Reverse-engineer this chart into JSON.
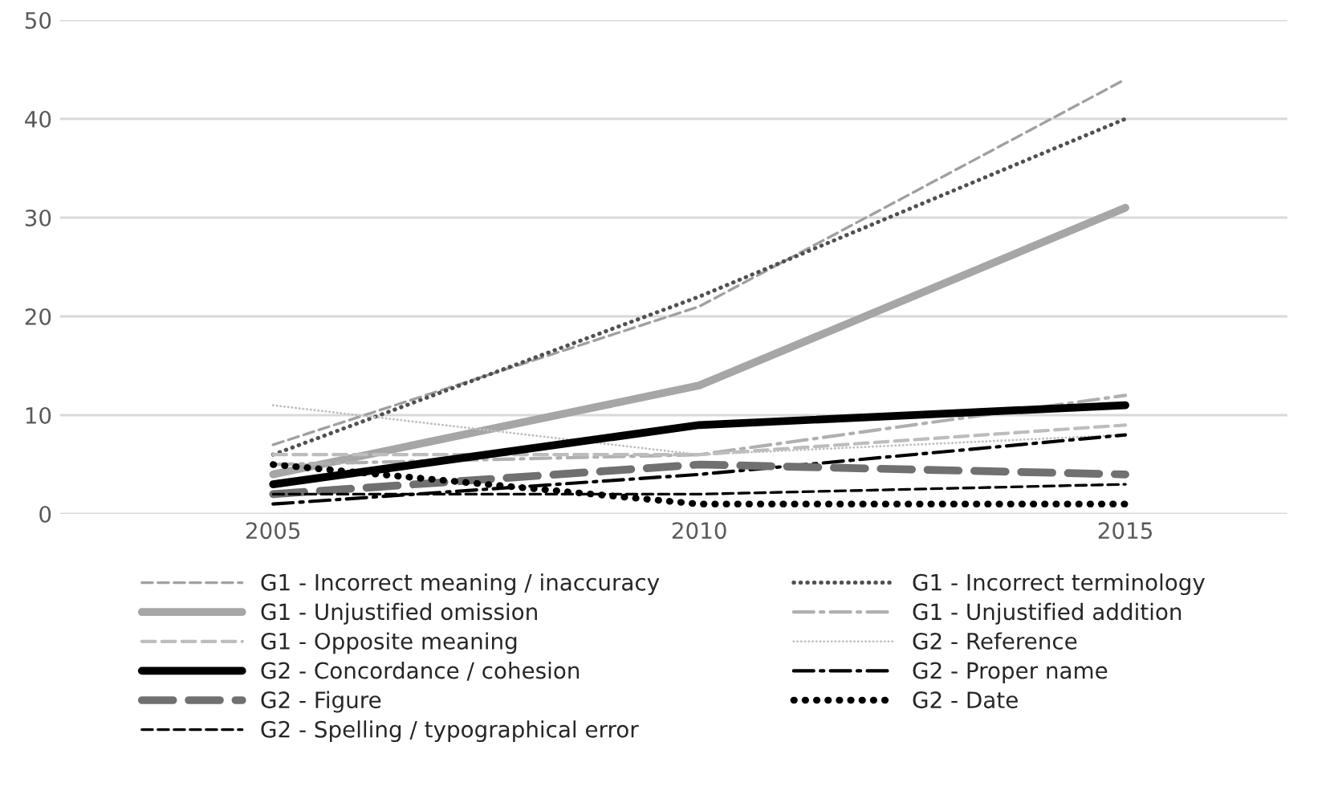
{
  "chart_data": {
    "type": "line",
    "categories": [
      "2005",
      "2010",
      "2015"
    ],
    "ylim": [
      0,
      50
    ],
    "yticks": [
      0,
      10,
      20,
      30,
      40,
      50
    ],
    "grid": "y",
    "legend": "bottom",
    "marker": "none",
    "series": [
      {
        "name": "G1 - Incorrect meaning / inaccuracy",
        "color": "#a0a0a0",
        "line_style": "dashed",
        "values": [
          7,
          21,
          44
        ]
      },
      {
        "name": "G1 - Incorrect terminology",
        "color": "#505050",
        "line_style": "dotted",
        "values": [
          6,
          22,
          40
        ]
      },
      {
        "name": "G1 - Unjustified omission",
        "color": "#a6a6a6",
        "line_style": "solid",
        "values": [
          4,
          13,
          31
        ]
      },
      {
        "name": "G1 - Unjustified addition",
        "color": "#b0b0b0",
        "line_style": "dashdot",
        "values": [
          5,
          6,
          12
        ]
      },
      {
        "name": "G1 - Opposite meaning",
        "color": "#bdbdbd",
        "line_style": "dashed",
        "values": [
          6,
          6,
          9
        ]
      },
      {
        "name": "G2 - Reference",
        "color": "#c0c0c0",
        "line_style": "dotted",
        "values": [
          11,
          6,
          8
        ]
      },
      {
        "name": "G2 - Concordance / cohesion",
        "color": "#000000",
        "line_style": "solid",
        "values": [
          3,
          9,
          11
        ]
      },
      {
        "name": "G2 - Proper name",
        "color": "#000000",
        "line_style": "dashdot",
        "values": [
          1,
          4,
          8
        ]
      },
      {
        "name": "G2 - Figure",
        "color": "#707070",
        "line_style": "dashed",
        "values": [
          2,
          5,
          4
        ]
      },
      {
        "name": "G2 - Date",
        "color": "#000000",
        "line_style": "dotted",
        "values": [
          5,
          1,
          1
        ]
      },
      {
        "name": "G2 - Spelling / typographical error",
        "color": "#000000",
        "line_style": "dashed",
        "values": [
          2,
          2,
          3
        ]
      }
    ]
  }
}
